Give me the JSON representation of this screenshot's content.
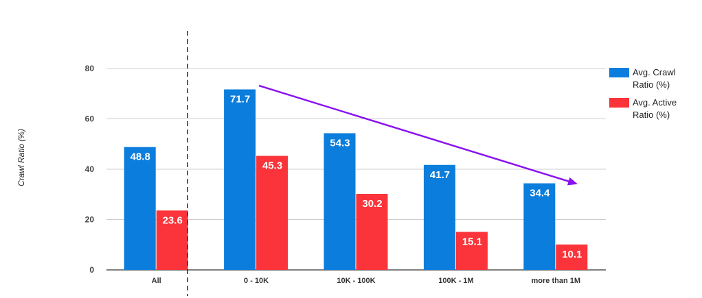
{
  "chart_data": {
    "type": "bar",
    "title": "",
    "xlabel": "",
    "ylabel": "Crawl Ratio (%)",
    "ylim": [
      0,
      80
    ],
    "yticks": [
      0,
      20,
      40,
      60,
      80
    ],
    "grid": true,
    "legend_position": "right",
    "categories": [
      "All",
      "0 - 10K",
      "10K - 100K",
      "100K - 1M",
      "more than 1M"
    ],
    "series": [
      {
        "name": "Avg. Crawl Ratio (%)",
        "name_lines": [
          "Avg. Crawl",
          "Ratio (%)"
        ],
        "color": "#0b7ddc",
        "values": [
          48.8,
          71.7,
          54.3,
          41.7,
          34.4
        ]
      },
      {
        "name": "Avg. Active Ratio (%)",
        "name_lines": [
          "Avg. Active",
          "Ratio (%)"
        ],
        "color": "#fa343a",
        "values": [
          23.6,
          45.3,
          30.2,
          15.1,
          10.1
        ]
      }
    ],
    "annotations": [
      {
        "type": "dashed-separator",
        "after_category": "All"
      },
      {
        "type": "trend-arrow",
        "color": "#8a12f0",
        "from_category": "0 - 10K",
        "to_category": "more than 1M"
      }
    ]
  }
}
